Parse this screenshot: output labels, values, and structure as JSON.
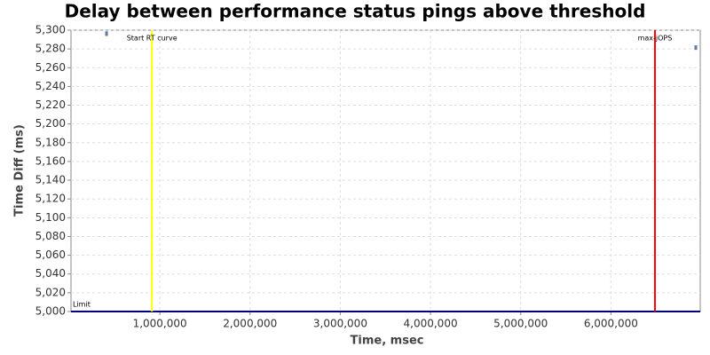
{
  "chart_data": {
    "type": "scatter",
    "title": "Delay between performance status pings above threshold",
    "xlabel": "Time, msec",
    "ylabel": "Time Diff (ms)",
    "x": [
      409000,
      6941000
    ],
    "series": [
      {
        "color": "#c0504d",
        "values": [
          5294.8,
          5280
        ]
      },
      {
        "color": "#4f81bd",
        "values": [
          5296,
          5281
        ]
      }
    ],
    "xlim": [
      15000,
      6990000
    ],
    "ylim": [
      5000,
      5300
    ],
    "xticks": [
      {
        "value": 1000000,
        "label": "1,000,000"
      },
      {
        "value": 2000000,
        "label": "2,000,000"
      },
      {
        "value": 3000000,
        "label": "3,000,000"
      },
      {
        "value": 4000000,
        "label": "4,000,000"
      },
      {
        "value": 5000000,
        "label": "5,000,000"
      },
      {
        "value": 6000000,
        "label": "6,000,000"
      }
    ],
    "yticks": [
      {
        "value": 5000,
        "label": "5,000"
      },
      {
        "value": 5020,
        "label": "5,020"
      },
      {
        "value": 5040,
        "label": "5,040"
      },
      {
        "value": 5060,
        "label": "5,060"
      },
      {
        "value": 5080,
        "label": "5,080"
      },
      {
        "value": 5100,
        "label": "5,100"
      },
      {
        "value": 5120,
        "label": "5,120"
      },
      {
        "value": 5140,
        "label": "5,140"
      },
      {
        "value": 5160,
        "label": "5,160"
      },
      {
        "value": 5180,
        "label": "5,180"
      },
      {
        "value": 5200,
        "label": "5,200"
      },
      {
        "value": 5220,
        "label": "5,220"
      },
      {
        "value": 5240,
        "label": "5,240"
      },
      {
        "value": 5260,
        "label": "5,260"
      },
      {
        "value": 5280,
        "label": "5,280"
      },
      {
        "value": 5300,
        "label": "5,300"
      }
    ],
    "grid": true,
    "vlines": [
      {
        "label": "Start RT curve",
        "x": 912000,
        "color": "#ffff00"
      },
      {
        "label": "max-jOPS",
        "x": 6488000,
        "color": "#ff0000"
      }
    ],
    "hlines": [
      {
        "label": "Limit",
        "y": 5000,
        "color": "#000080"
      }
    ]
  }
}
